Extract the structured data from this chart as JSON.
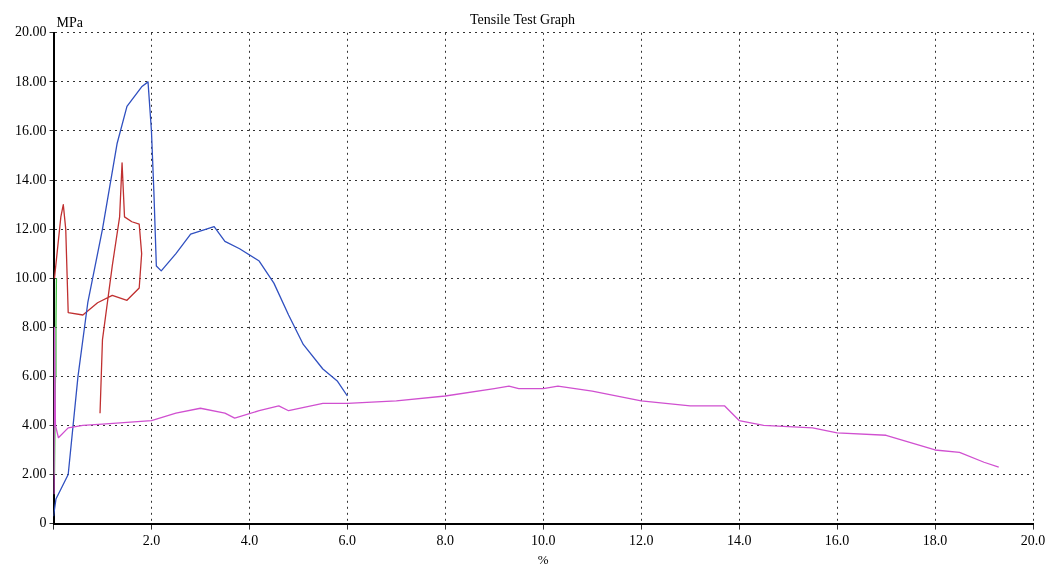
{
  "chart_data": {
    "type": "line",
    "title": "Tensile Test Graph",
    "xlabel": "%",
    "ylabel": "MPa",
    "xlim": [
      0,
      20
    ],
    "ylim": [
      0,
      20
    ],
    "xticks": [
      {
        "value": 0,
        "label": null
      },
      {
        "value": 2,
        "label": "2.0"
      },
      {
        "value": 4,
        "label": "4.0"
      },
      {
        "value": 6,
        "label": "6.0"
      },
      {
        "value": 8,
        "label": "8.0"
      },
      {
        "value": 10,
        "label": "10.0"
      },
      {
        "value": 12,
        "label": "12.0"
      },
      {
        "value": 14,
        "label": "14.0"
      },
      {
        "value": 16,
        "label": "16.0"
      },
      {
        "value": 18,
        "label": "18.0"
      },
      {
        "value": 20,
        "label": "20.0"
      }
    ],
    "yticks": [
      {
        "value": 0,
        "label": "0"
      },
      {
        "value": 2,
        "label": "2.00"
      },
      {
        "value": 4,
        "label": "4.00"
      },
      {
        "value": 6,
        "label": "6.00"
      },
      {
        "value": 8,
        "label": "8.00"
      },
      {
        "value": 10,
        "label": "10.00"
      },
      {
        "value": 12,
        "label": "12.00"
      },
      {
        "value": 14,
        "label": "14.00"
      },
      {
        "value": 16,
        "label": "16.00"
      },
      {
        "value": 18,
        "label": "18.00"
      },
      {
        "value": 20,
        "label": "20.00"
      }
    ],
    "grid": true,
    "marker": "none",
    "line_style": "solid",
    "legend": false,
    "series": [
      {
        "color": "#d050d0",
        "x": [
          0.01,
          0.02,
          0.04,
          0.1,
          0.3,
          0.6,
          1.0,
          2.0,
          2.5,
          3.0,
          3.5,
          3.7,
          4.2,
          4.6,
          4.8,
          5.5,
          6.0,
          7.0,
          8.0,
          9.0,
          9.3,
          9.5,
          10.0,
          10.3,
          11.0,
          12.0,
          13.0,
          13.7,
          14.0,
          14.5,
          15.5,
          16.0,
          17.0,
          17.5,
          18.0,
          18.5,
          19.0,
          19.3
        ],
        "values": [
          1.2,
          8,
          4,
          3.5,
          3.9,
          4.0,
          4.05,
          4.2,
          4.5,
          4.7,
          4.5,
          4.3,
          4.6,
          4.8,
          4.6,
          4.9,
          4.9,
          5.0,
          5.2,
          5.5,
          5.6,
          5.5,
          5.5,
          5.6,
          5.4,
          5.0,
          4.8,
          4.8,
          4.2,
          4.0,
          3.9,
          3.7,
          3.6,
          3.3,
          3.0,
          2.9,
          2.5,
          2.3
        ]
      },
      {
        "color": "#40c040",
        "x": [
          0.02,
          0.04,
          0.05,
          0.06
        ],
        "values": [
          2,
          6,
          8,
          10
        ]
      },
      {
        "color": "#3050c0",
        "x": [
          0,
          0.05,
          0.15,
          0.3,
          0.5,
          0.7,
          1.0,
          1.3,
          1.5,
          1.8,
          1.93,
          2.0,
          2.05,
          2.1,
          2.2,
          2.5,
          2.8,
          3.28,
          3.5,
          3.8,
          4.2,
          4.5,
          4.8,
          5.1,
          5.5,
          5.8,
          6.0
        ],
        "values": [
          0.3,
          1.0,
          1.4,
          2.0,
          6.0,
          9.0,
          12.0,
          15.5,
          17.0,
          17.8,
          18.0,
          16.0,
          13.5,
          10.5,
          10.3,
          11.0,
          11.8,
          12.1,
          11.5,
          11.2,
          10.7,
          9.8,
          8.5,
          7.3,
          6.3,
          5.8,
          5.2
        ]
      },
      {
        "color": "#c03030",
        "x": [
          0.02,
          0.15,
          0.2,
          0.25,
          0.3,
          0.6,
          0.9,
          1.2,
          1.5,
          1.75,
          1.8,
          1.75,
          1.6,
          1.45,
          1.4,
          1.35,
          1.2,
          1.0,
          0.95
        ],
        "values": [
          10,
          12.5,
          13,
          12,
          8.6,
          8.5,
          9.0,
          9.3,
          9.1,
          9.6,
          11,
          12.2,
          12.3,
          12.5,
          14.7,
          12.5,
          10.5,
          7.5,
          4.5
        ]
      }
    ]
  }
}
